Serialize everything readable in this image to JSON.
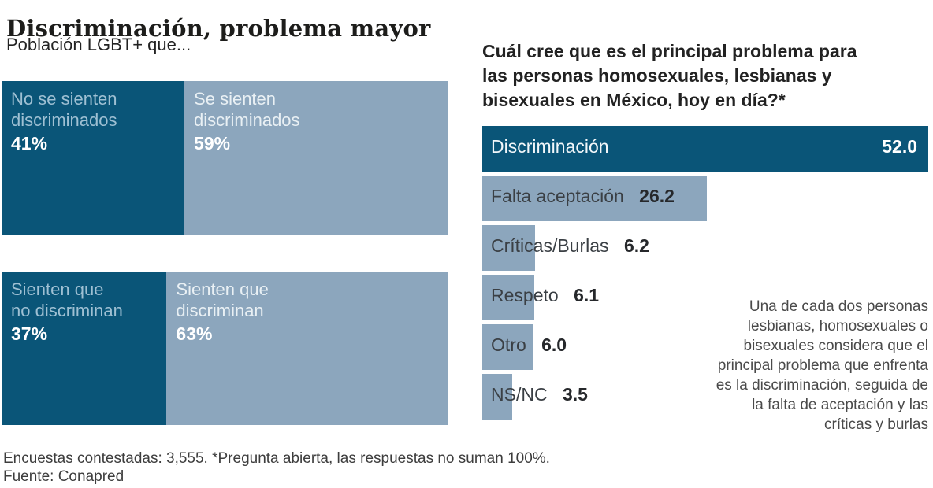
{
  "title": "Discriminación, problema mayor",
  "colors": {
    "dark_blue": "#0a5578",
    "light_blue_gray": "#8ca6bd",
    "label_on_dark": "#9fc0d3",
    "title_text": "#1d1d1b",
    "body_text": "#3d3d3d"
  },
  "left_section": {
    "subtitle": "Población LGBT+ que...",
    "charts": [
      {
        "segments": [
          {
            "line1": "No se sienten",
            "line2": "discriminados",
            "pct": "41%",
            "value": 41,
            "tone": "dark"
          },
          {
            "line1": "Se sienten",
            "line2": "discriminados",
            "pct": "59%",
            "value": 59,
            "tone": "light"
          }
        ]
      },
      {
        "segments": [
          {
            "line1": "Sienten que",
            "line2": "no discriminan",
            "pct": "37%",
            "value": 37,
            "tone": "dark"
          },
          {
            "line1": "Sienten que",
            "line2": "discriminan",
            "pct": "63%",
            "value": 63,
            "tone": "light"
          }
        ]
      }
    ]
  },
  "right_section": {
    "question_lines": [
      "Cuál cree que es el principal problema para",
      "las personas homosexuales, lesbianas y",
      "bisexuales en México, hoy en día?*"
    ],
    "scale_max": 52,
    "bars": [
      {
        "label": "Discriminación",
        "value": 52.0,
        "display": "52.0",
        "tone": "dark"
      },
      {
        "label": "Falta aceptación",
        "value": 26.2,
        "display": "26.2",
        "tone": "light"
      },
      {
        "label": "Críticas/Burlas",
        "value": 6.2,
        "display": "6.2",
        "tone": "light"
      },
      {
        "label": "Respeto",
        "value": 6.1,
        "display": "6.1",
        "tone": "light"
      },
      {
        "label": "Otro",
        "value": 6.0,
        "display": "6.0",
        "tone": "light"
      },
      {
        "label": "NS/NC",
        "value": 3.5,
        "display": "3.5",
        "tone": "light"
      }
    ],
    "annotation_lines": [
      "Una de cada dos personas",
      "lesbianas, homosexuales o",
      "bisexuales considera que el",
      "principal problema que enfrenta",
      "es la discriminación, seguida de",
      "la falta de aceptación y las",
      "críticas y burlas"
    ]
  },
  "footer": {
    "note": "Encuestas contestadas: 3,555. *Pregunta abierta, las respuestas no suman 100%.",
    "source": "Fuente: Conapred"
  },
  "chart_data": [
    {
      "type": "bar",
      "subtype": "stacked-horizontal",
      "title": "Población LGBT+ que...",
      "categories": [
        "No se sienten discriminados",
        "Se sienten discriminados"
      ],
      "values": [
        41,
        59
      ],
      "unit": "%",
      "xlim": [
        0,
        100
      ],
      "grid": false,
      "legend": "none"
    },
    {
      "type": "bar",
      "subtype": "stacked-horizontal",
      "title": "Población LGBT+ que...",
      "categories": [
        "Sienten que no discriminan",
        "Sienten que discriminan"
      ],
      "values": [
        37,
        63
      ],
      "unit": "%",
      "xlim": [
        0,
        100
      ],
      "grid": false,
      "legend": "none"
    },
    {
      "type": "bar",
      "subtype": "horizontal",
      "title": "Cuál cree que es el principal problema para las personas homosexuales, lesbianas y bisexuales en México, hoy en día?*",
      "categories": [
        "Discriminación",
        "Falta aceptación",
        "Críticas/Burlas",
        "Respeto",
        "Otro",
        "NS/NC"
      ],
      "values": [
        52.0,
        26.2,
        6.2,
        6.1,
        6.0,
        3.5
      ],
      "xlim": [
        0,
        52
      ],
      "grid": false,
      "legend": "none",
      "annotation": "Una de cada dos personas lesbianas, homosexuales o bisexuales considera que el principal problema que enfrenta es la discriminación, seguida de la falta de aceptación y las críticas y burlas"
    }
  ]
}
